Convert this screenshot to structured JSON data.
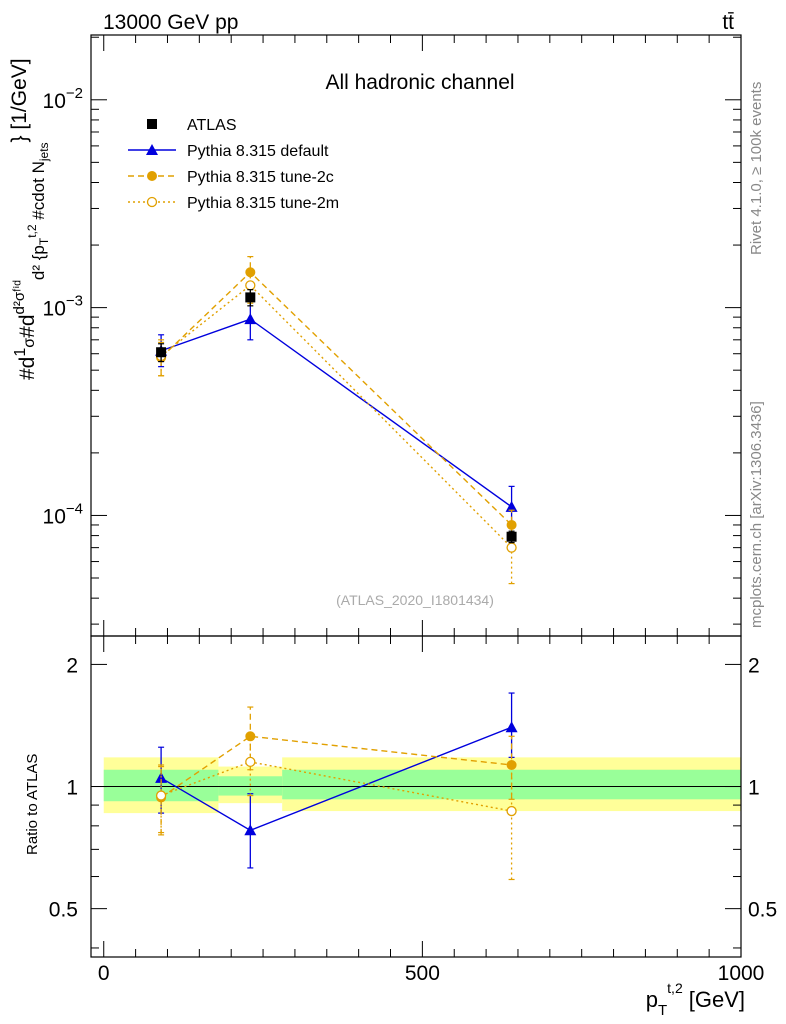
{
  "header": {
    "left": "13000 GeV pp",
    "right": "tt̄"
  },
  "side": {
    "rivet": "Rivet 4.1.0, ≥ 100k events",
    "source": "mcplots.cern.ch [arXiv:1306.3436]"
  },
  "colors": {
    "atlas": "#000000",
    "default": "#0000dd",
    "tune2c": "#e1a000",
    "tune2m": "#e1a000",
    "band_inner": "#99ff99",
    "band_outer": "#ffff99"
  },
  "chart_data": {
    "type": "line",
    "title": "All hadronic channel",
    "watermark": "(ATLAS_2020_I1801434)",
    "xlabel": "p_T^{t,2} [GeV]",
    "xlabel_parts": {
      "p": "p",
      "sub": "T",
      "sup": "t,2",
      "unit": "[GeV]"
    },
    "ylabel": "#d{1}{#sigma}#d{d^{2}#sigma^{#it{fid}}}{d^{2} {p_{T}^{t,2} #cdot N_{jets}} [1/GeV]",
    "ylabel_parts": {
      "a": "#d",
      "b": "1",
      "c": "σ",
      "d": "#d",
      "e": "d²σᶠⁱᵈ",
      "f": "d² {p",
      "g": "T",
      "h": "t,2",
      "i": " #cdot N",
      "j": "jets",
      "k": "} [1/GeV]"
    },
    "xlim": [
      -20,
      1000
    ],
    "ylim_main": [
      2.63e-05,
      0.0205
    ],
    "yscale_main": "log",
    "ylim_ratio": [
      0.38,
      2.35
    ],
    "yscale_ratio": "log",
    "ratio_ylabel": "Ratio to ATLAS",
    "x_ticks": [
      {
        "value": 0,
        "label": "0"
      },
      {
        "value": 500,
        "label": "500"
      },
      {
        "value": 1000,
        "label": "1000"
      }
    ],
    "main_y_ticks": [
      {
        "value": 0.0001,
        "base": "10",
        "exp": "−4"
      },
      {
        "value": 0.001,
        "base": "10",
        "exp": "−3"
      },
      {
        "value": 0.01,
        "base": "10",
        "exp": "−2"
      }
    ],
    "ratio_y_ticks": [
      {
        "value": 0.5,
        "label": "0.5"
      },
      {
        "value": 1,
        "label": "1"
      },
      {
        "value": 2,
        "label": "2"
      }
    ],
    "bins": [
      {
        "lo": 0,
        "hi": 180,
        "inner": [
          0.92,
          1.1
        ],
        "outer": [
          0.86,
          1.18
        ]
      },
      {
        "lo": 180,
        "hi": 280,
        "inner": [
          0.95,
          1.06
        ],
        "outer": [
          0.91,
          1.12
        ]
      },
      {
        "lo": 280,
        "hi": 1000,
        "inner": [
          0.93,
          1.1
        ],
        "outer": [
          0.87,
          1.18
        ]
      }
    ],
    "x": [
      90,
      230,
      640
    ],
    "series": [
      {
        "name": "ATLAS",
        "style": "data",
        "marker": "square",
        "values": [
          0.00061,
          0.00112,
          7.9e-05
        ],
        "err_lo": [
          0.00055,
          0.00102,
          7.4e-05
        ],
        "err_hi": [
          0.00067,
          0.00122,
          8.4e-05
        ],
        "ratio": [
          1,
          1,
          1
        ]
      },
      {
        "name": "Pythia 8.315 default",
        "style": "solid",
        "marker": "triangle",
        "values": [
          0.00062,
          0.00088,
          0.00011
        ],
        "err_lo": [
          0.00052,
          0.0007,
          9.2e-05
        ],
        "err_hi": [
          0.00074,
          0.00108,
          0.000138
        ],
        "ratio": [
          1.05,
          0.78,
          1.4
        ],
        "ratio_lo": [
          0.86,
          0.63,
          1.18
        ],
        "ratio_hi": [
          1.25,
          0.96,
          1.7
        ]
      },
      {
        "name": "Pythia 8.315 tune-2c",
        "style": "dashed",
        "marker": "circle",
        "values": [
          0.000575,
          0.00148,
          9e-05
        ],
        "err_lo": [
          0.00047,
          0.00124,
          7.4e-05
        ],
        "err_hi": [
          0.00068,
          0.00176,
          0.000106
        ],
        "ratio": [
          0.94,
          1.33,
          1.13
        ],
        "ratio_lo": [
          0.76,
          1.1,
          0.93
        ],
        "ratio_hi": [
          1.12,
          1.57,
          1.33
        ]
      },
      {
        "name": "Pythia 8.315 tune-2m",
        "style": "dotted",
        "marker": "open-circle",
        "values": [
          0.000585,
          0.00128,
          7e-05
        ],
        "err_lo": [
          0.00047,
          0.00105,
          4.7e-05
        ],
        "err_hi": [
          0.0007,
          0.00151,
          9.3e-05
        ],
        "ratio": [
          0.95,
          1.15,
          0.87
        ],
        "ratio_lo": [
          0.77,
          0.95,
          0.59
        ],
        "ratio_hi": [
          1.13,
          1.35,
          1.15
        ]
      }
    ]
  }
}
